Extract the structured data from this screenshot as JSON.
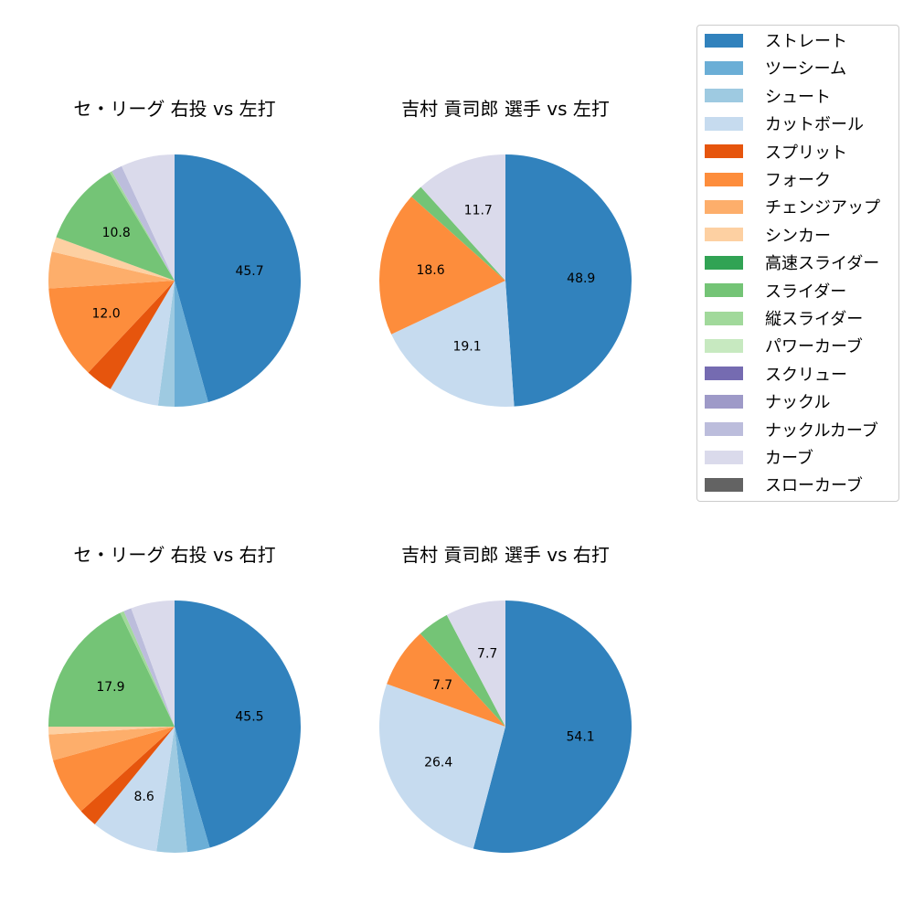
{
  "legend": {
    "items": [
      {
        "label": "ストレート",
        "color": "#3182bd"
      },
      {
        "label": "ツーシーム",
        "color": "#6baed6"
      },
      {
        "label": "シュート",
        "color": "#9ecae1"
      },
      {
        "label": "カットボール",
        "color": "#c6dbef"
      },
      {
        "label": "スプリット",
        "color": "#e6550d"
      },
      {
        "label": "フォーク",
        "color": "#fd8d3c"
      },
      {
        "label": "チェンジアップ",
        "color": "#fdae6b"
      },
      {
        "label": "シンカー",
        "color": "#fdd0a2"
      },
      {
        "label": "高速スライダー",
        "color": "#31a354"
      },
      {
        "label": "スライダー",
        "color": "#74c476"
      },
      {
        "label": "縦スライダー",
        "color": "#a1d99b"
      },
      {
        "label": "パワーカーブ",
        "color": "#c7e9c0"
      },
      {
        "label": "スクリュー",
        "color": "#756bb1"
      },
      {
        "label": "ナックル",
        "color": "#9e9ac8"
      },
      {
        "label": "ナックルカーブ",
        "color": "#bcbddc"
      },
      {
        "label": "カーブ",
        "color": "#dadaeb"
      },
      {
        "label": "スローカーブ",
        "color": "#636363"
      }
    ]
  },
  "chart_data": [
    {
      "type": "pie",
      "title": "セ・リーグ 右投 vs 左打",
      "categories": [
        "ストレート",
        "ツーシーム",
        "シュート",
        "カットボール",
        "スプリット",
        "フォーク",
        "チェンジアップ",
        "シンカー",
        "スライダー",
        "縦スライダー",
        "ナックルカーブ",
        "カーブ"
      ],
      "values": [
        45.7,
        4.3,
        2.1,
        6.4,
        3.5,
        12.0,
        4.7,
        1.9,
        10.8,
        0.3,
        1.4,
        6.9
      ],
      "labels_shown": [
        "45.7",
        "",
        "",
        "",
        "",
        "12.0",
        "",
        "",
        "10.8",
        "",
        "",
        ""
      ],
      "colors": [
        "#3182bd",
        "#6baed6",
        "#9ecae1",
        "#c6dbef",
        "#e6550d",
        "#fd8d3c",
        "#fdae6b",
        "#fdd0a2",
        "#74c476",
        "#a1d99b",
        "#bcbddc",
        "#dadaeb"
      ],
      "startangle": 90,
      "counterclock": false
    },
    {
      "type": "pie",
      "title": "吉村 貢司郎 選手 vs 左打",
      "categories": [
        "ストレート",
        "カットボール",
        "フォーク",
        "スライダー",
        "カーブ"
      ],
      "values": [
        48.9,
        19.1,
        18.6,
        1.7,
        11.7
      ],
      "labels_shown": [
        "48.9",
        "19.1",
        "18.6",
        "",
        "11.7"
      ],
      "colors": [
        "#3182bd",
        "#c6dbef",
        "#fd8d3c",
        "#74c476",
        "#dadaeb"
      ],
      "startangle": 90,
      "counterclock": false
    },
    {
      "type": "pie",
      "title": "セ・リーグ 右投 vs 右打",
      "categories": [
        "ストレート",
        "ツーシーム",
        "シュート",
        "カットボール",
        "スプリット",
        "フォーク",
        "チェンジアップ",
        "シンカー",
        "スライダー",
        "縦スライダー",
        "ナックルカーブ",
        "カーブ"
      ],
      "values": [
        45.5,
        2.9,
        3.9,
        8.6,
        2.4,
        7.4,
        3.3,
        1.0,
        17.9,
        0.5,
        1.0,
        5.6
      ],
      "labels_shown": [
        "45.5",
        "",
        "",
        "8.6",
        "",
        "",
        "",
        "",
        "17.9",
        "",
        "",
        ""
      ],
      "colors": [
        "#3182bd",
        "#6baed6",
        "#9ecae1",
        "#c6dbef",
        "#e6550d",
        "#fd8d3c",
        "#fdae6b",
        "#fdd0a2",
        "#74c476",
        "#a1d99b",
        "#bcbddc",
        "#dadaeb"
      ],
      "startangle": 90,
      "counterclock": false
    },
    {
      "type": "pie",
      "title": "吉村 貢司郎 選手 vs 右打",
      "categories": [
        "ストレート",
        "カットボール",
        "フォーク",
        "スライダー",
        "カーブ"
      ],
      "values": [
        54.1,
        26.4,
        7.7,
        4.1,
        7.7
      ],
      "labels_shown": [
        "54.1",
        "26.4",
        "7.7",
        "",
        "7.7"
      ],
      "colors": [
        "#3182bd",
        "#c6dbef",
        "#fd8d3c",
        "#74c476",
        "#dadaeb"
      ],
      "startangle": 90,
      "counterclock": false
    }
  ]
}
